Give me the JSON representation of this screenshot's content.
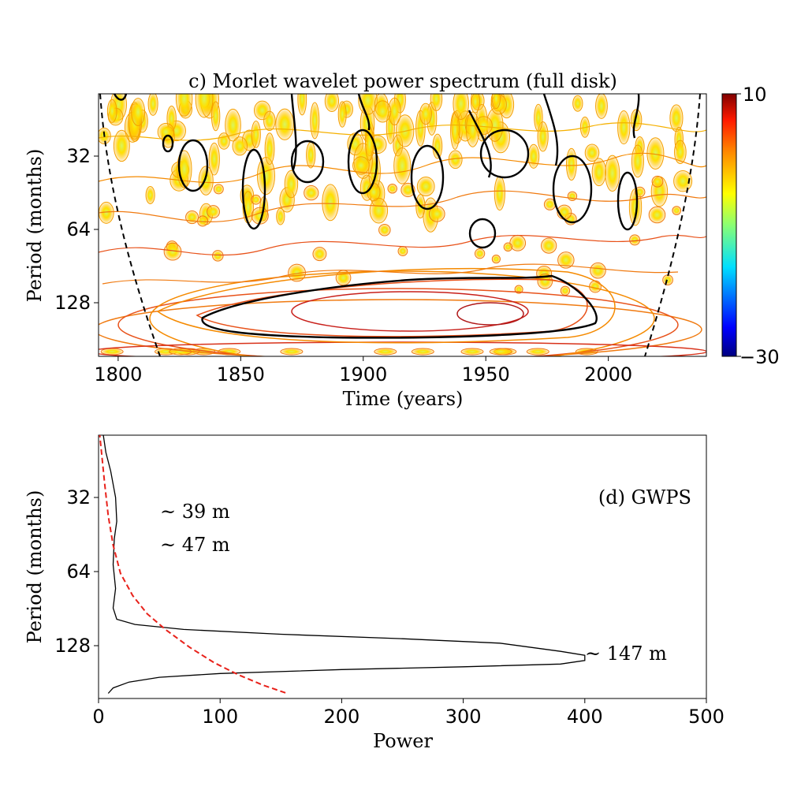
{
  "chart_data": [
    {
      "type": "heatmap",
      "title": "c) Morlet wavelet power spectrum (full disk)",
      "xlabel": "Time (years)",
      "ylabel": "Period (months)",
      "xlim": [
        1792,
        2040
      ],
      "x_ticks": [
        1800,
        1850,
        1900,
        1950,
        2000
      ],
      "y_ticks": [
        32,
        64,
        128
      ],
      "y_scale": "log2",
      "y_inverted": true,
      "colorbar": {
        "min": -30,
        "max": 10,
        "tick_labels": [
          "10",
          "−30"
        ],
        "colormap": "jet"
      },
      "features": {
        "dominant_band": {
          "period": 147,
          "x_range": [
            1833,
            1997
          ]
        },
        "cone_of_influence": "dashed black"
      }
    },
    {
      "type": "line",
      "title": "(d) GWPS",
      "xlabel": "Power",
      "ylabel": "Period (months)",
      "xlim": [
        0,
        500
      ],
      "x_ticks": [
        0,
        100,
        200,
        300,
        400,
        500
      ],
      "y_ticks": [
        32,
        64,
        128
      ],
      "y_scale": "log2",
      "y_inverted": true,
      "series": [
        {
          "color": "#000000",
          "style": "solid",
          "points": [
            [
              2,
              16
            ],
            [
              4,
              18
            ],
            [
              6,
              21
            ],
            [
              10,
              25
            ],
            [
              14,
              32
            ],
            [
              15,
              40
            ],
            [
              13,
              47
            ],
            [
              12,
              60
            ],
            [
              14,
              75
            ],
            [
              12,
              90
            ],
            [
              15,
              100
            ],
            [
              30,
              105
            ],
            [
              70,
              110
            ],
            [
              150,
              115
            ],
            [
              250,
              120
            ],
            [
              330,
              125
            ],
            [
              380,
              135
            ],
            [
              400,
              140
            ],
            [
              400,
              147
            ],
            [
              380,
              152
            ],
            [
              300,
              156
            ],
            [
              200,
              160
            ],
            [
              100,
              166
            ],
            [
              50,
              172
            ],
            [
              25,
              180
            ],
            [
              12,
              190
            ],
            [
              8,
              200
            ]
          ]
        },
        {
          "color": "#e8211a",
          "style": "dashed",
          "points": [
            [
              0,
              16
            ],
            [
              2,
              20
            ],
            [
              5,
              28
            ],
            [
              8,
              38
            ],
            [
              12,
              50
            ],
            [
              18,
              65
            ],
            [
              28,
              80
            ],
            [
              40,
              95
            ],
            [
              55,
              110
            ],
            [
              75,
              130
            ],
            [
              95,
              150
            ],
            [
              115,
              168
            ],
            [
              135,
              185
            ],
            [
              155,
              200
            ]
          ]
        }
      ],
      "annotations": [
        "~ 39 m",
        "~ 47 m",
        "~ 147 m"
      ]
    }
  ],
  "colors": {
    "contour_hot": "#f5c800",
    "contour_mid": "#f58a00",
    "contour_red": "#e23a12",
    "significance": "#000000",
    "limit_line": "#e8211a"
  }
}
